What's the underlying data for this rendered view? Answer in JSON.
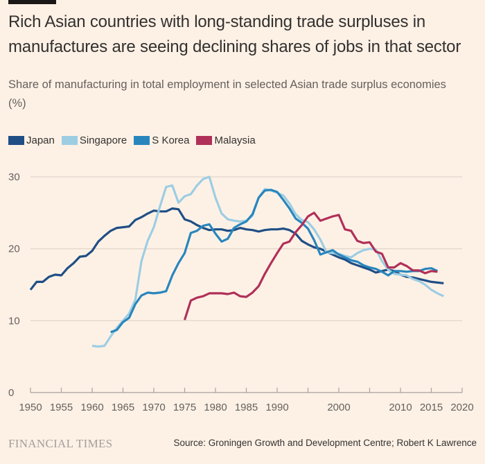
{
  "header": {
    "title": "Rich Asian countries with long-standing trade surpluses in manufactures are seeing declining shares of jobs in that sector",
    "subtitle": "Share of manufacturing in total employment in selected Asian trade surplus economies (%)"
  },
  "footer": {
    "brand": "FINANCIAL TIMES",
    "source": "Source: Groningen Growth and Development Centre; Robert K Lawrence"
  },
  "chart_data": {
    "type": "line",
    "title": "Rich Asian countries with long-standing trade surpluses in manufactures are seeing declining shares of jobs in that sector",
    "subtitle": "Share of manufacturing in total employment in selected Asian trade surplus economies (%)",
    "xlabel": "",
    "ylabel": "",
    "xlim": [
      1950,
      2020
    ],
    "ylim": [
      0,
      30
    ],
    "grid": true,
    "legend": "top-left",
    "x_ticks": [
      1950,
      1955,
      1960,
      1965,
      1970,
      1975,
      1980,
      1985,
      1990,
      1995,
      2000,
      2005,
      2010,
      2015,
      2020
    ],
    "x_tick_labels": [
      "1950",
      "1955",
      "1960",
      "1965",
      "1970",
      "1975",
      "1980",
      "1985",
      "1990",
      "",
      "2000",
      "",
      "2010",
      "2015",
      "2020"
    ],
    "y_ticks": [
      0,
      10,
      20,
      30
    ],
    "y_tick_labels": [
      "0",
      "10",
      "20",
      "30"
    ],
    "series": [
      {
        "name": "Japan",
        "color": "#1f4e85",
        "start_year": 1950,
        "values": [
          14.3,
          15.4,
          15.4,
          16.1,
          16.4,
          16.3,
          17.3,
          18.0,
          18.9,
          19.0,
          19.7,
          21.0,
          21.8,
          22.5,
          22.9,
          23.0,
          23.1,
          24.0,
          24.4,
          24.9,
          25.3,
          25.2,
          25.2,
          25.6,
          25.5,
          24.1,
          23.8,
          23.3,
          22.9,
          22.6,
          22.7,
          22.7,
          22.5,
          22.6,
          22.9,
          22.7,
          22.6,
          22.4,
          22.6,
          22.7,
          22.7,
          22.8,
          22.6,
          22.1,
          21.1,
          20.6,
          20.2,
          20.0,
          19.6,
          19.2,
          18.8,
          18.5,
          18.0,
          17.7,
          17.4,
          17.1,
          16.7,
          16.9,
          17.1,
          16.9,
          16.4,
          16.1,
          16.0,
          15.8,
          15.6,
          15.4,
          15.3,
          15.2
        ]
      },
      {
        "name": "Singapore",
        "color": "#9dcde3",
        "start_year": 1960,
        "values": [
          6.5,
          6.4,
          6.5,
          7.8,
          9.0,
          10.0,
          11.0,
          12.9,
          18.3,
          21.1,
          23.0,
          25.9,
          28.6,
          28.8,
          26.4,
          27.3,
          27.6,
          28.8,
          29.7,
          30.0,
          27.1,
          24.9,
          24.1,
          23.9,
          23.8,
          23.9,
          24.6,
          27.1,
          28.3,
          28.1,
          27.8,
          27.4,
          26.3,
          24.8,
          24.0,
          23.7,
          22.7,
          21.3,
          19.5,
          19.4,
          19.3,
          19.0,
          18.8,
          19.4,
          19.8,
          20.0,
          19.9,
          18.3,
          17.1,
          16.5,
          16.4,
          16.3,
          15.8,
          15.5,
          15.0,
          14.3,
          13.8,
          13.4
        ]
      },
      {
        "name": "S Korea",
        "color": "#2886bd",
        "start_year": 1963,
        "values": [
          8.4,
          8.7,
          9.8,
          10.4,
          12.3,
          13.5,
          13.9,
          13.8,
          13.9,
          14.1,
          16.3,
          18.0,
          19.4,
          22.2,
          22.5,
          23.2,
          23.4,
          22.1,
          21.0,
          21.4,
          22.9,
          23.4,
          23.8,
          24.8,
          27.1,
          28.1,
          28.2,
          27.9,
          26.8,
          25.6,
          24.2,
          23.6,
          22.8,
          21.2,
          19.2,
          19.5,
          19.8,
          19.2,
          18.8,
          18.4,
          18.2,
          17.7,
          17.4,
          17.2,
          16.8,
          16.3,
          16.9,
          16.9,
          16.8,
          16.9,
          16.9,
          17.2,
          17.3,
          16.9
        ]
      },
      {
        "name": "Malaysia",
        "color": "#b03058",
        "start_year": 1975,
        "values": [
          10.1,
          12.8,
          13.2,
          13.4,
          13.8,
          13.8,
          13.8,
          13.7,
          13.9,
          13.4,
          13.3,
          13.9,
          14.8,
          16.5,
          18.0,
          19.4,
          20.7,
          21.0,
          22.3,
          23.3,
          24.5,
          25.0,
          23.9,
          24.2,
          24.5,
          24.7,
          22.7,
          22.5,
          21.1,
          20.8,
          20.9,
          19.6,
          19.3,
          17.4,
          17.4,
          18.0,
          17.6,
          17.0,
          17.0,
          16.6,
          16.9,
          16.8
        ]
      }
    ]
  }
}
